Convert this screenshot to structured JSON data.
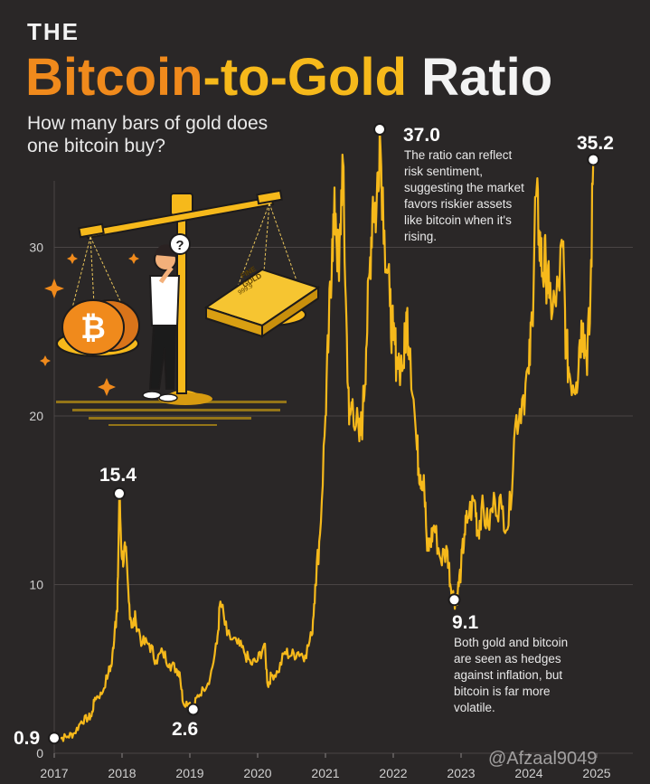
{
  "header": {
    "pre_title": "THE",
    "title_part1": "Bitcoin",
    "title_part2": "-to-",
    "title_part3": "Gold",
    "title_part4": "Ratio",
    "subtitle": "How many bars of gold does one bitcoin buy?"
  },
  "illustration": {
    "gold_bar_text_1": "FINE",
    "gold_bar_text_2": "GOLD",
    "gold_bar_text_3": "999.9",
    "question_mark": "?"
  },
  "colors": {
    "background": "#2a2727",
    "line": "#f6b91b",
    "accent_orange": "#f08a1c",
    "grid": "#4a4545",
    "tick_text": "#cfcfcf"
  },
  "watermark": "@Afzaal9049",
  "chart_data": {
    "type": "line",
    "title": "The Bitcoin-to-Gold Ratio",
    "xlabel": "",
    "ylabel": "",
    "xlim": [
      2017.0,
      2025.0
    ],
    "ylim": [
      0,
      37
    ],
    "grid": true,
    "y_ticks": [
      0,
      10,
      20,
      30
    ],
    "x_ticks": [
      "2017",
      "2018",
      "2019",
      "2020",
      "2021",
      "2022",
      "2023",
      "2024",
      "2025"
    ],
    "series": [
      {
        "values": [
          [
            2017.0,
            0.9
          ],
          [
            2017.1,
            0.9
          ],
          [
            2017.2,
            1.0
          ],
          [
            2017.3,
            1.2
          ],
          [
            2017.4,
            1.9
          ],
          [
            2017.5,
            2.1
          ],
          [
            2017.55,
            2.2
          ],
          [
            2017.6,
            3.3
          ],
          [
            2017.7,
            3.5
          ],
          [
            2017.8,
            4.8
          ],
          [
            2017.85,
            5.3
          ],
          [
            2017.9,
            7.8
          ],
          [
            2017.93,
            8.4
          ],
          [
            2017.96,
            15.4
          ],
          [
            2018.0,
            11.5
          ],
          [
            2018.05,
            12.0
          ],
          [
            2018.1,
            9.0
          ],
          [
            2018.15,
            7.5
          ],
          [
            2018.2,
            8.0
          ],
          [
            2018.3,
            6.5
          ],
          [
            2018.4,
            6.5
          ],
          [
            2018.5,
            5.5
          ],
          [
            2018.6,
            6.0
          ],
          [
            2018.7,
            5.3
          ],
          [
            2018.8,
            5.0
          ],
          [
            2018.85,
            4.8
          ],
          [
            2018.9,
            3.0
          ],
          [
            2019.0,
            3.0
          ],
          [
            2019.05,
            2.6
          ],
          [
            2019.1,
            3.3
          ],
          [
            2019.2,
            3.8
          ],
          [
            2019.3,
            4.5
          ],
          [
            2019.4,
            6.5
          ],
          [
            2019.45,
            9.0
          ],
          [
            2019.55,
            7.0
          ],
          [
            2019.7,
            6.5
          ],
          [
            2019.8,
            6.0
          ],
          [
            2019.9,
            5.3
          ],
          [
            2020.0,
            5.5
          ],
          [
            2020.1,
            6.5
          ],
          [
            2020.15,
            4.0
          ],
          [
            2020.2,
            4.6
          ],
          [
            2020.3,
            4.8
          ],
          [
            2020.4,
            6.0
          ],
          [
            2020.5,
            5.8
          ],
          [
            2020.6,
            6.0
          ],
          [
            2020.7,
            5.8
          ],
          [
            2020.8,
            7.0
          ],
          [
            2020.85,
            10.0
          ],
          [
            2020.92,
            13.0
          ],
          [
            2021.0,
            20.0
          ],
          [
            2021.05,
            25.0
          ],
          [
            2021.1,
            30.5
          ],
          [
            2021.15,
            32.0
          ],
          [
            2021.2,
            28.0
          ],
          [
            2021.25,
            35.5
          ],
          [
            2021.3,
            27.0
          ],
          [
            2021.35,
            19.5
          ],
          [
            2021.4,
            21.0
          ],
          [
            2021.5,
            18.5
          ],
          [
            2021.55,
            20.0
          ],
          [
            2021.6,
            24.0
          ],
          [
            2021.65,
            28.5
          ],
          [
            2021.7,
            33.0
          ],
          [
            2021.75,
            32.0
          ],
          [
            2021.8,
            37.0
          ],
          [
            2021.87,
            31.0
          ],
          [
            2021.95,
            26.5
          ],
          [
            2022.0,
            24.5
          ],
          [
            2022.05,
            23.5
          ],
          [
            2022.15,
            23.0
          ],
          [
            2022.2,
            26.0
          ],
          [
            2022.25,
            24.0
          ],
          [
            2022.35,
            18.0
          ],
          [
            2022.4,
            16.5
          ],
          [
            2022.45,
            16.5
          ],
          [
            2022.5,
            12.0
          ],
          [
            2022.55,
            12.5
          ],
          [
            2022.6,
            13.5
          ],
          [
            2022.7,
            11.5
          ],
          [
            2022.8,
            12.0
          ],
          [
            2022.85,
            9.8
          ],
          [
            2022.9,
            9.1
          ],
          [
            2022.95,
            9.5
          ],
          [
            2023.0,
            11.0
          ],
          [
            2023.05,
            13.0
          ],
          [
            2023.1,
            14.0
          ],
          [
            2023.2,
            15.0
          ],
          [
            2023.25,
            13.0
          ],
          [
            2023.3,
            14.5
          ],
          [
            2023.4,
            13.5
          ],
          [
            2023.5,
            15.0
          ],
          [
            2023.6,
            14.5
          ],
          [
            2023.7,
            13.5
          ],
          [
            2023.8,
            19.5
          ],
          [
            2023.9,
            21.0
          ],
          [
            2024.0,
            22.5
          ],
          [
            2024.05,
            26.0
          ],
          [
            2024.1,
            33.0
          ],
          [
            2024.15,
            31.0
          ],
          [
            2024.2,
            28.5
          ],
          [
            2024.25,
            29.0
          ],
          [
            2024.3,
            27.0
          ],
          [
            2024.4,
            26.5
          ],
          [
            2024.5,
            30.0
          ],
          [
            2024.55,
            24.0
          ],
          [
            2024.6,
            22.5
          ],
          [
            2024.7,
            22.0
          ],
          [
            2024.75,
            24.5
          ],
          [
            2024.8,
            25.5
          ],
          [
            2024.85,
            23.5
          ],
          [
            2024.9,
            25.5
          ],
          [
            2024.95,
            35.2
          ]
        ]
      }
    ],
    "callouts": [
      {
        "x": 2017.0,
        "y": 0.9,
        "label": "0.9",
        "text": ""
      },
      {
        "x": 2017.96,
        "y": 15.4,
        "label": "15.4",
        "text": ""
      },
      {
        "x": 2019.05,
        "y": 2.6,
        "label": "2.6",
        "text": ""
      },
      {
        "x": 2021.8,
        "y": 37.0,
        "label": "37.0",
        "text": "The ratio can reflect risk sentiment, suggesting the market favors riskier assets like bitcoin when it's rising."
      },
      {
        "x": 2022.9,
        "y": 9.1,
        "label": "9.1",
        "text": "Both gold and bitcoin are seen as hedges against inflation, but bitcoin is far more volatile."
      },
      {
        "x": 2024.95,
        "y": 35.2,
        "label": "35.2",
        "text": ""
      }
    ]
  }
}
